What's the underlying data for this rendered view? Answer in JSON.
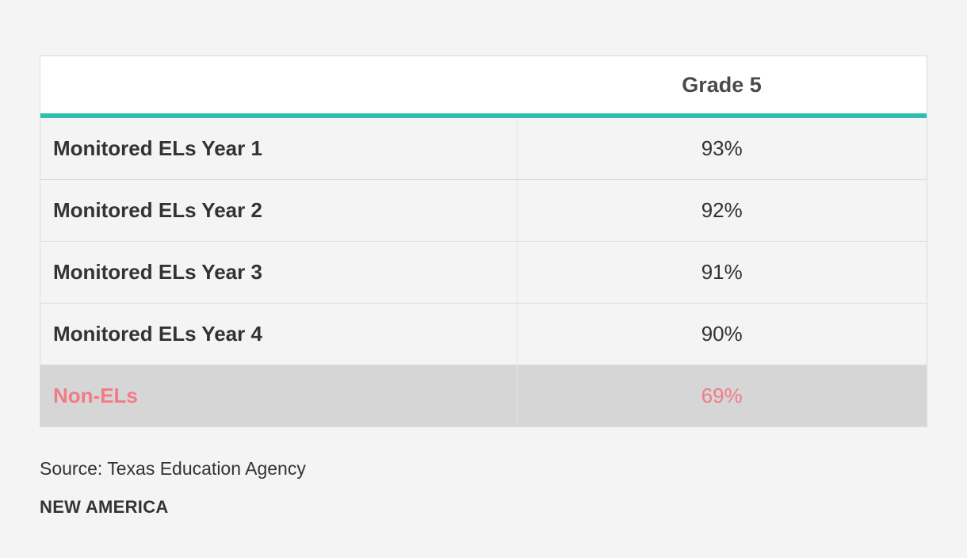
{
  "chart_data": {
    "type": "table",
    "columns": [
      "",
      "Grade 5"
    ],
    "rows": [
      {
        "label": "Monitored ELs Year 1",
        "value": "93%"
      },
      {
        "label": "Monitored ELs Year 2",
        "value": "92%"
      },
      {
        "label": "Monitored ELs Year 3",
        "value": "91%"
      },
      {
        "label": "Monitored ELs Year 4",
        "value": "90%"
      },
      {
        "label": "Non-ELs",
        "value": "69%",
        "highlight": true
      }
    ],
    "colors": {
      "header_rule": "#2ebfb0",
      "highlight_text": "#f27b86",
      "highlight_bg": "#d6d6d6"
    }
  },
  "source": "Source: Texas Education Agency",
  "brand": "NEW AMERICA"
}
